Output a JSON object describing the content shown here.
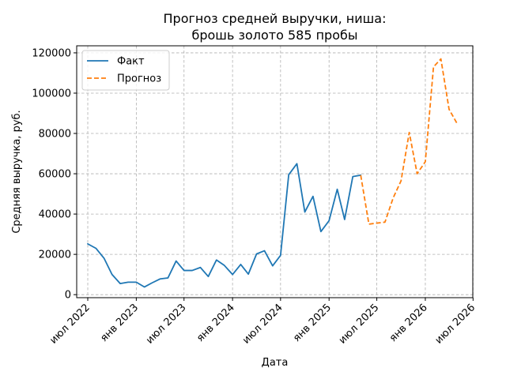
{
  "chart_data": {
    "type": "line",
    "title_lines": [
      "Прогноз средней выручки, ниша:",
      "брошь золото 585 пробы"
    ],
    "xlabel": "Дата",
    "ylabel": "Средняя выручка, руб.",
    "x_ticks": [
      {
        "date": "2022-07-01",
        "label": "июл 2022"
      },
      {
        "date": "2023-01-01",
        "label": "янв 2023"
      },
      {
        "date": "2023-07-01",
        "label": "июл 2023"
      },
      {
        "date": "2024-01-01",
        "label": "янв 2024"
      },
      {
        "date": "2024-07-01",
        "label": "июл 2024"
      },
      {
        "date": "2025-01-01",
        "label": "янв 2025"
      },
      {
        "date": "2025-07-01",
        "label": "июл 2025"
      },
      {
        "date": "2026-01-01",
        "label": "янв 2026"
      },
      {
        "date": "2026-07-01",
        "label": "июл 2026"
      }
    ],
    "y_ticks": [
      {
        "value": 0,
        "label": "0"
      },
      {
        "value": 20000,
        "label": "20000"
      },
      {
        "value": 40000,
        "label": "40000"
      },
      {
        "value": 60000,
        "label": "60000"
      },
      {
        "value": 80000,
        "label": "80000"
      },
      {
        "value": 100000,
        "label": "100000"
      },
      {
        "value": 120000,
        "label": "120000"
      }
    ],
    "xlim": [
      "2022-05-20",
      "2026-06-30"
    ],
    "ylim": [
      -1500,
      123500
    ],
    "grid": true,
    "legend_position": "top-left",
    "series": [
      {
        "name": "Факт",
        "color": "#1f77b4",
        "style": "solid",
        "x": [
          "2022-07-01",
          "2022-08-01",
          "2022-09-01",
          "2022-10-01",
          "2022-11-01",
          "2022-12-01",
          "2023-01-01",
          "2023-02-01",
          "2023-03-01",
          "2023-04-01",
          "2023-05-01",
          "2023-06-01",
          "2023-07-01",
          "2023-08-01",
          "2023-09-01",
          "2023-10-01",
          "2023-11-01",
          "2023-12-01",
          "2024-01-01",
          "2024-02-01",
          "2024-03-01",
          "2024-04-01",
          "2024-05-01",
          "2024-06-01",
          "2024-07-01",
          "2024-08-01",
          "2024-09-01",
          "2024-10-01",
          "2024-11-01",
          "2024-12-01",
          "2025-01-01",
          "2025-02-01",
          "2025-03-01",
          "2025-04-01",
          "2025-05-01"
        ],
        "y": [
          25200,
          23000,
          18000,
          10000,
          5500,
          6200,
          6200,
          3800,
          5800,
          7800,
          8300,
          16700,
          12000,
          12000,
          13500,
          9000,
          17200,
          14500,
          10000,
          15000,
          10200,
          20200,
          21800,
          14300,
          19500,
          59500,
          65000,
          41000,
          48800,
          31300,
          36700,
          52300,
          37300,
          58600,
          59300
        ]
      },
      {
        "name": "Прогноз",
        "color": "#ff7f0e",
        "style": "dashed",
        "x": [
          "2025-05-01",
          "2025-06-01",
          "2025-07-01",
          "2025-08-01",
          "2025-09-01",
          "2025-10-01",
          "2025-11-01",
          "2025-12-01",
          "2026-01-01",
          "2026-02-01",
          "2026-03-01",
          "2026-04-01",
          "2026-05-01"
        ],
        "y": [
          59300,
          35000,
          35500,
          36000,
          48000,
          56500,
          80500,
          60000,
          66000,
          113000,
          117000,
          92000,
          85000
        ]
      }
    ]
  }
}
